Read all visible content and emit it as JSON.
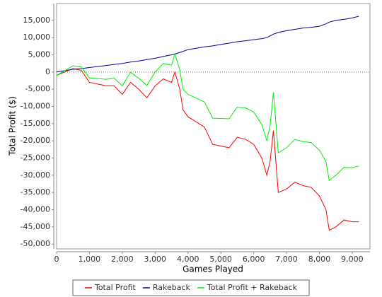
{
  "chart_data": {
    "type": "line",
    "xlabel": "Games Played",
    "ylabel": "Total Profit ($)",
    "x": [
      0,
      250,
      500,
      750,
      1000,
      1250,
      1500,
      1750,
      2000,
      2250,
      2500,
      2750,
      3000,
      3250,
      3500,
      3600,
      3750,
      3850,
      4000,
      4250,
      4500,
      4750,
      5000,
      5250,
      5500,
      5750,
      6000,
      6250,
      6400,
      6500,
      6600,
      6750,
      7000,
      7250,
      7500,
      7750,
      8000,
      8200,
      8300,
      8500,
      8750,
      9000,
      9200
    ],
    "series": [
      {
        "name": "Total Profit",
        "color": "#ff0000",
        "values": [
          -1000,
          0,
          1000,
          500,
          -3000,
          -3500,
          -4000,
          -4000,
          -6500,
          -3000,
          -5000,
          -7500,
          -4000,
          -2000,
          -3000,
          0,
          -5000,
          -11000,
          -13000,
          -14500,
          -16000,
          -21000,
          -21500,
          -22000,
          -19000,
          -19500,
          -21000,
          -25000,
          -30000,
          -26000,
          -17000,
          -35000,
          -34000,
          -32000,
          -33000,
          -33500,
          -36000,
          -40000,
          -46000,
          -45000,
          -43000,
          -43500,
          -43500
        ]
      },
      {
        "name": "Rakeback",
        "color": "#000099",
        "values": [
          0,
          400,
          800,
          1000,
          1300,
          1600,
          1900,
          2200,
          2500,
          2900,
          3200,
          3600,
          4000,
          4500,
          5000,
          5200,
          5700,
          6000,
          6500,
          6900,
          7300,
          7600,
          8000,
          8400,
          8800,
          9100,
          9400,
          9700,
          10000,
          10500,
          11000,
          11500,
          12000,
          12400,
          12800,
          13000,
          13300,
          14000,
          14500,
          15000,
          15300,
          15700,
          16200
        ]
      },
      {
        "name": "Total Profit + Rakeback",
        "color": "#00ee00",
        "values": [
          -1000,
          400,
          1800,
          1500,
          -1700,
          -1900,
          -2100,
          -1800,
          -4000,
          -100,
          -1800,
          -3900,
          0,
          2500,
          2000,
          5200,
          700,
          -5000,
          -6500,
          -7600,
          -8700,
          -13400,
          -13500,
          -13600,
          -10200,
          -10400,
          -11600,
          -15300,
          -20000,
          -15500,
          -6000,
          -23500,
          -22000,
          -19600,
          -20200,
          -20500,
          -22700,
          -26000,
          -31500,
          -30000,
          -27700,
          -27800,
          -27300
        ]
      }
    ],
    "xlim": [
      0,
      9540
    ],
    "xticks": [
      0,
      {
        "value": 1000,
        "label": "1,000"
      },
      {
        "value": 2000,
        "label": "2,000"
      },
      {
        "value": 3000,
        "label": "3,000"
      },
      {
        "value": 4000,
        "label": "4,000"
      },
      {
        "value": 5000,
        "label": "5,000"
      },
      {
        "value": 6000,
        "label": "6,000"
      },
      {
        "value": 7000,
        "label": "7,000"
      },
      {
        "value": 8000,
        "label": "8,000"
      },
      {
        "value": 9000,
        "label": "9,000"
      }
    ],
    "ylim": [
      -51400,
      19900
    ],
    "yticks": [
      {
        "value": 15000,
        "label": "15,000"
      },
      {
        "value": 10000,
        "label": "10,000"
      },
      {
        "value": 5000,
        "label": "5,000"
      },
      0,
      {
        "value": -5000,
        "label": "-5,000"
      },
      {
        "value": -10000,
        "label": "-10,000"
      },
      {
        "value": -15000,
        "label": "-15,000"
      },
      {
        "value": -20000,
        "label": "-20,000"
      },
      {
        "value": -25000,
        "label": "-25,000"
      },
      {
        "value": -30000,
        "label": "-30,000"
      },
      {
        "value": -35000,
        "label": "-35,000"
      },
      {
        "value": -40000,
        "label": "-40,000"
      },
      {
        "value": -45000,
        "label": "-45,000"
      },
      {
        "value": -50000,
        "label": "-50,000"
      }
    ],
    "legend": "bottom"
  }
}
